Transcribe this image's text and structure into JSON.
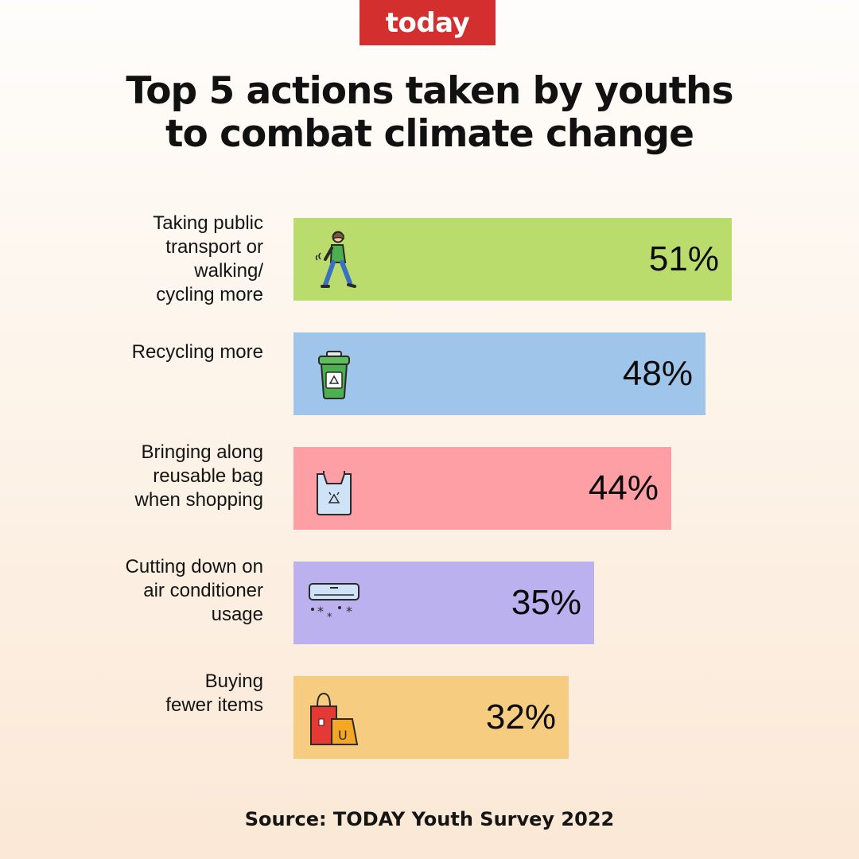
{
  "brand": "today",
  "title_lines": [
    "Top 5 actions taken by youths",
    "to combat climate change"
  ],
  "source": "Source: TODAY Youth Survey 2022",
  "chart_data": {
    "type": "bar",
    "orientation": "horizontal",
    "title": "Top 5 actions taken by youths to combat climate change",
    "categories": [
      "Taking public transport or walking/ cycling more",
      "Recycling more",
      "Bringing along reusable bag when shopping",
      "Cutting down on air conditioner usage",
      "Buying fewer items"
    ],
    "values": [
      51,
      48,
      44,
      35,
      32
    ],
    "value_labels": [
      "51%",
      "48%",
      "44%",
      "35%",
      "32%"
    ],
    "unit": "%",
    "grid": false,
    "legend": "none"
  },
  "rows": [
    {
      "label_lines": [
        "Taking public",
        "transport or",
        "walking/",
        "cycling more"
      ],
      "value_label": "51%",
      "color": "#b9dc6c",
      "icon": "walking-person-icon"
    },
    {
      "label_lines": [
        "Recycling more"
      ],
      "value_label": "48%",
      "color": "#9fc5ea",
      "icon": "recycling-bin-icon"
    },
    {
      "label_lines": [
        "Bringing along",
        "reusable bag",
        "when shopping"
      ],
      "value_label": "44%",
      "color": "#fd9fa5",
      "icon": "reusable-bag-icon"
    },
    {
      "label_lines": [
        "Cutting down on",
        "air conditioner",
        "usage"
      ],
      "value_label": "35%",
      "color": "#bcb1ef",
      "icon": "air-conditioner-icon"
    },
    {
      "label_lines": [
        "Buying",
        "fewer items"
      ],
      "value_label": "32%",
      "color": "#f5cc80",
      "icon": "shopping-bags-icon"
    }
  ]
}
